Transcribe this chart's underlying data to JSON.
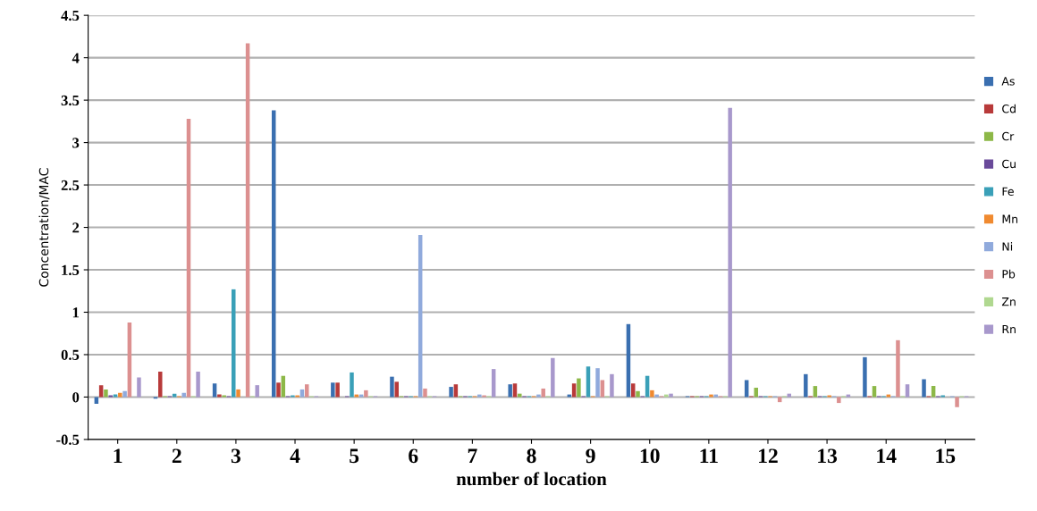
{
  "chart_data": {
    "type": "bar",
    "xlabel": "number of location",
    "ylabel": "Concentration/MAC",
    "categories": [
      "1",
      "2",
      "3",
      "4",
      "5",
      "6",
      "7",
      "8",
      "9",
      "10",
      "11",
      "12",
      "13",
      "14",
      "15"
    ],
    "series": [
      {
        "name": "As",
        "color": "#3a6fb0",
        "values": [
          -0.08,
          -0.02,
          0.16,
          3.38,
          0.17,
          0.24,
          0.12,
          0.15,
          0.03,
          0.86,
          0.01,
          0.2,
          0.27,
          0.47,
          0.21
        ]
      },
      {
        "name": "Cd",
        "color": "#b83a3a",
        "values": [
          0.14,
          0.3,
          0.03,
          0.17,
          0.17,
          0.18,
          0.15,
          0.16,
          0.16,
          0.16,
          0.01,
          0.01,
          0.01,
          0.01,
          0.01
        ]
      },
      {
        "name": "Cr",
        "color": "#8db848",
        "values": [
          0.09,
          0.01,
          0.02,
          0.25,
          null,
          0.01,
          0.01,
          0.04,
          0.22,
          0.07,
          0.01,
          0.11,
          0.13,
          0.13,
          0.13
        ]
      },
      {
        "name": "Cu",
        "color": "#6a4a9a",
        "values": [
          0.02,
          0.01,
          0.01,
          0.01,
          0.01,
          0.01,
          0.01,
          0.01,
          0.01,
          0.01,
          0.01,
          0.01,
          0.01,
          0.01,
          0.01
        ]
      },
      {
        "name": "Fe",
        "color": "#3aa0b8",
        "values": [
          0.03,
          0.04,
          1.27,
          0.02,
          0.29,
          0.01,
          0.01,
          0.01,
          0.36,
          0.25,
          0.01,
          0.01,
          0.01,
          0.01,
          0.02
        ]
      },
      {
        "name": "Mn",
        "color": "#f08a30",
        "values": [
          0.05,
          0.01,
          0.09,
          0.02,
          0.03,
          0.01,
          0.01,
          0.01,
          0.01,
          0.08,
          0.03,
          0.01,
          0.02,
          0.03,
          null
        ]
      },
      {
        "name": "Ni",
        "color": "#90aadc",
        "values": [
          0.07,
          0.05,
          null,
          0.09,
          0.03,
          1.91,
          0.03,
          0.03,
          0.34,
          0.03,
          0.03,
          0.01,
          0.01,
          0.01,
          0.01
        ]
      },
      {
        "name": "Pb",
        "color": "#dc9090",
        "values": [
          0.88,
          3.28,
          4.17,
          0.15,
          0.08,
          0.1,
          0.02,
          0.1,
          0.2,
          0.01,
          0.01,
          -0.06,
          -0.07,
          0.67,
          -0.12
        ]
      },
      {
        "name": "Zn",
        "color": "#b0d890",
        "values": [
          null,
          0.01,
          0.01,
          0.01,
          0.01,
          0.01,
          0.01,
          0.01,
          0.01,
          0.03,
          0.01,
          0.01,
          0.01,
          0.01,
          0.01
        ]
      },
      {
        "name": "Rn",
        "color": "#a898cc",
        "values": [
          0.23,
          0.3,
          0.14,
          0.01,
          0.01,
          0.01,
          0.33,
          0.46,
          0.27,
          0.04,
          3.41,
          0.04,
          0.03,
          0.15,
          0.01
        ]
      }
    ],
    "ylim": [
      -0.5,
      4.5
    ],
    "yticks": [
      -0.5,
      0,
      0.5,
      1,
      1.5,
      2,
      2.5,
      3,
      3.5,
      4,
      4.5
    ],
    "grid": "y",
    "legend": "right"
  }
}
